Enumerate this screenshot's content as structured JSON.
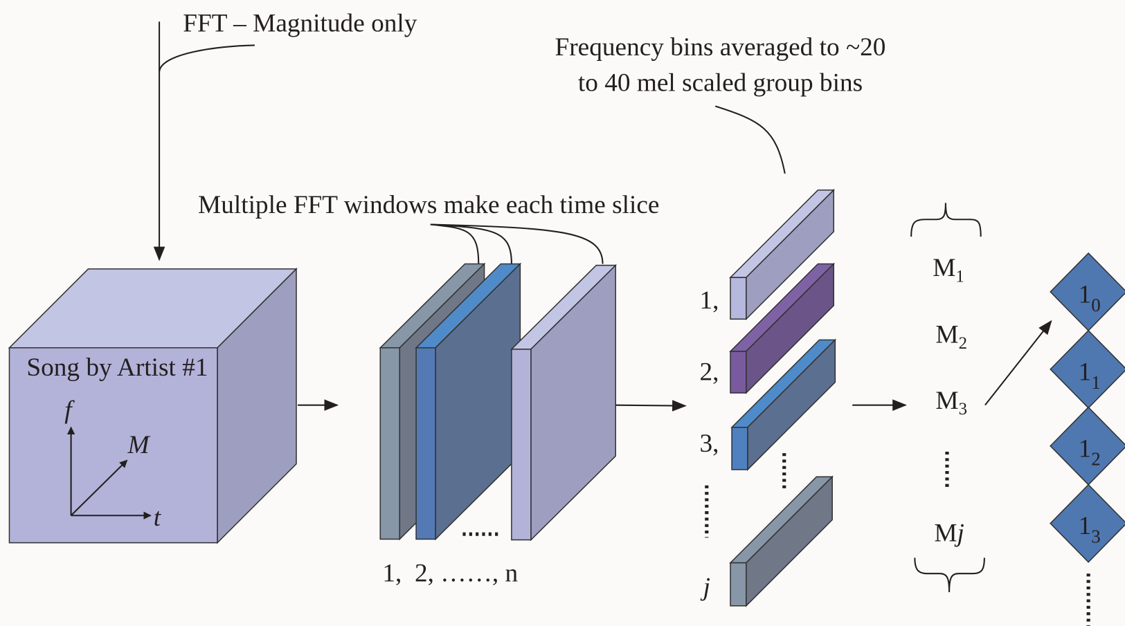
{
  "annotations": {
    "fft": "FFT – Magnitude only",
    "frequency_bins": [
      "Frequency bins averaged to ~20",
      "to 40 mel scaled group bins"
    ],
    "fft_windows": "Multiple FFT windows make each time slice"
  },
  "cube": {
    "label": "Song by Artist #1",
    "axes": [
      "f",
      "M",
      "t"
    ]
  },
  "windows": {
    "label": "1,  2, ……, n"
  },
  "slices": {
    "labels": [
      "1,",
      "2,",
      "3,",
      "j"
    ]
  },
  "mel": {
    "labels": [
      {
        "base": "M",
        "sub": "1"
      },
      {
        "base": "M",
        "sub": "2"
      },
      {
        "base": "M",
        "sub": "3"
      },
      {
        "base": "M",
        "suffix": "j"
      }
    ]
  },
  "diamonds": {
    "labels": [
      {
        "base": "1",
        "sub": "0"
      },
      {
        "base": "1",
        "sub": "1"
      },
      {
        "base": "1",
        "sub": "2"
      },
      {
        "base": "1",
        "sub": "3"
      }
    ]
  }
}
